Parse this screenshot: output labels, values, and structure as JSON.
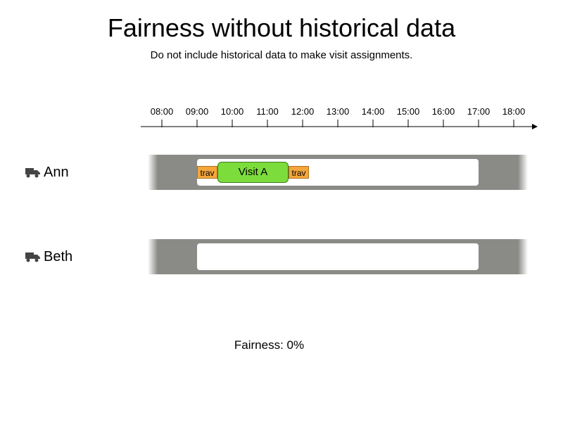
{
  "title": "Fairness without historical data",
  "subtitle": "Do not include historical data to make visit assignments.",
  "timeline": {
    "hours": [
      "08:00",
      "09:00",
      "10:00",
      "11:00",
      "12:00",
      "13:00",
      "14:00",
      "15:00",
      "16:00",
      "17:00",
      "18:00"
    ]
  },
  "employees": [
    {
      "name": "Ann",
      "icon": "truck-icon"
    },
    {
      "name": "Beth",
      "icon": "truck-icon"
    }
  ],
  "ann_schedule": {
    "travel_before": "trav",
    "visit": "Visit A",
    "travel_after": "trav"
  },
  "fairness": "Fairness: 0%",
  "colors": {
    "lane": "#8a8a86",
    "shift": "#ffffff",
    "travel": "#f4a63b",
    "visit": "#7cdc3c"
  }
}
